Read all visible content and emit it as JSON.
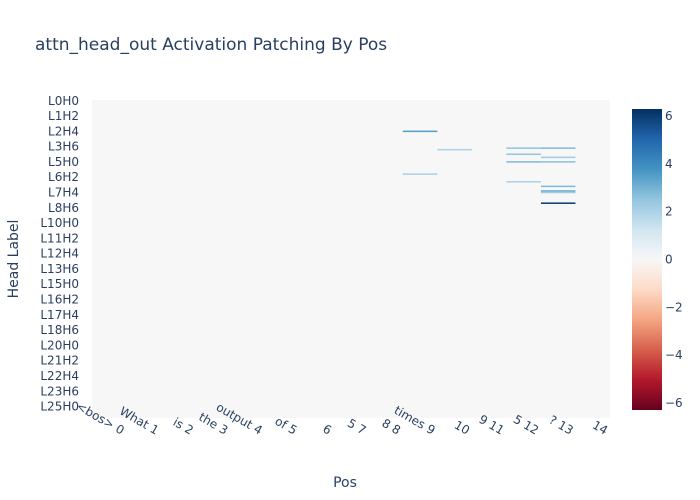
{
  "chart_data": {
    "type": "heatmap",
    "title": "attn_head_out Activation Patching By Pos",
    "xlabel": "Pos",
    "ylabel": "Head Label",
    "x_categories": [
      "<bos> 0",
      "What 1",
      "is 2",
      "the 3",
      "output 4",
      "of 5",
      "6",
      "5 7",
      "8 8",
      "times 9",
      "10",
      "9 11",
      "5 12",
      "? 13",
      "14"
    ],
    "n_rows": 208,
    "y_tick_labels": [
      {
        "row": 0,
        "label": "L0H0"
      },
      {
        "row": 10,
        "label": "L1H2"
      },
      {
        "row": 20,
        "label": "L2H4"
      },
      {
        "row": 30,
        "label": "L3H6"
      },
      {
        "row": 40,
        "label": "L5H0"
      },
      {
        "row": 50,
        "label": "L6H2"
      },
      {
        "row": 60,
        "label": "L7H4"
      },
      {
        "row": 70,
        "label": "L8H6"
      },
      {
        "row": 80,
        "label": "L10H0"
      },
      {
        "row": 90,
        "label": "L11H2"
      },
      {
        "row": 100,
        "label": "L12H4"
      },
      {
        "row": 110,
        "label": "L13H6"
      },
      {
        "row": 120,
        "label": "L15H0"
      },
      {
        "row": 130,
        "label": "L16H2"
      },
      {
        "row": 140,
        "label": "L17H4"
      },
      {
        "row": 150,
        "label": "L18H6"
      },
      {
        "row": 160,
        "label": "L20H0"
      },
      {
        "row": 170,
        "label": "L21H2"
      },
      {
        "row": 180,
        "label": "L22H4"
      },
      {
        "row": 190,
        "label": "L23H6"
      },
      {
        "row": 200,
        "label": "L25H0"
      }
    ],
    "default_value": 0,
    "cells": [
      {
        "row": 20,
        "col": 9,
        "value": 3.5
      },
      {
        "row": 32,
        "col": 10,
        "value": 2.0
      },
      {
        "row": 31,
        "col": 12,
        "value": 2.5
      },
      {
        "row": 31,
        "col": 13,
        "value": 2.8
      },
      {
        "row": 35,
        "col": 12,
        "value": 2.5
      },
      {
        "row": 37,
        "col": 13,
        "value": 2.2
      },
      {
        "row": 40,
        "col": 12,
        "value": 2.8
      },
      {
        "row": 40,
        "col": 13,
        "value": 2.6
      },
      {
        "row": 48,
        "col": 9,
        "value": 2.0
      },
      {
        "row": 53,
        "col": 12,
        "value": 2.0
      },
      {
        "row": 56,
        "col": 13,
        "value": 2.8
      },
      {
        "row": 59,
        "col": 13,
        "value": 3.2
      },
      {
        "row": 60,
        "col": 13,
        "value": 2.3
      },
      {
        "row": 67,
        "col": 13,
        "value": 6.0
      }
    ],
    "colorscale": [
      "#67001f",
      "#b2182b",
      "#d6604d",
      "#f4a582",
      "#fddbc7",
      "#f7f7f7",
      "#d1e5f0",
      "#92c5de",
      "#4393c3",
      "#2166ac",
      "#053061"
    ],
    "zmin": -6.3,
    "zmax": 6.3,
    "colorbar_ticks": [
      6,
      4,
      2,
      0,
      -2,
      -4,
      -6
    ],
    "background_color": "#f7f7f7"
  }
}
